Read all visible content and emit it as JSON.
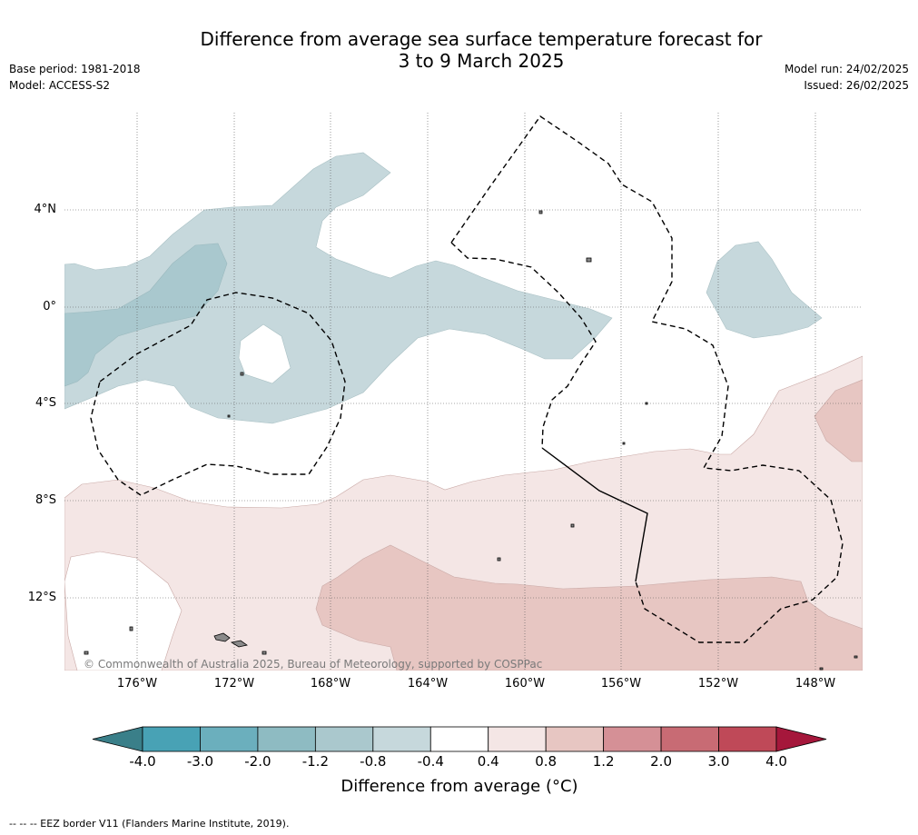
{
  "title": {
    "line1": "Difference from average sea surface temperature forecast for",
    "line2": "3 to 9 March 2025"
  },
  "meta": {
    "base_period": "Base period: 1981-2018",
    "model": "Model: ACCESS-S2",
    "model_run": "Model run: 24/02/2025",
    "issued": "Issued: 26/02/2025"
  },
  "map": {
    "lat_labels": [
      "4°N",
      "0°",
      "4°S",
      "8°S",
      "12°S"
    ],
    "lon_labels": [
      "176°W",
      "172°W",
      "168°W",
      "164°W",
      "160°W",
      "156°W",
      "152°W",
      "148°W"
    ],
    "copyright": "© Commonwealth of Australia 2025, Bureau of Meteorology, supported by COSPPac",
    "colors": {
      "cool_light": "#c6d8dc",
      "cool_mid": "#a9c8ce",
      "warm_light": "#f4e6e5",
      "warm_mid": "#e7c6c2",
      "eez_line": "#000000",
      "grid": "#555555",
      "land": "#8a8a8a"
    }
  },
  "colorbar": {
    "ticks": [
      "-4.0",
      "-3.0",
      "-2.0",
      "-1.2",
      "-0.8",
      "-0.4",
      "0.4",
      "0.8",
      "1.2",
      "2.0",
      "3.0",
      "4.0"
    ],
    "segment_colors": [
      "#48a2b5",
      "#6bafbd",
      "#8ebbc2",
      "#aac8cd",
      "#c6d8dc",
      "#ffffff",
      "#f4e6e5",
      "#e7c6c2",
      "#d59096",
      "#c86b74",
      "#bf4958"
    ],
    "low_extend_color": "#3a7f89",
    "high_extend_color": "#a5173b",
    "label": "Difference from average (°C)"
  },
  "footer": {
    "eez_note": "--  --  -- EEZ border V11 (Flanders Marine Institute, 2019)."
  }
}
